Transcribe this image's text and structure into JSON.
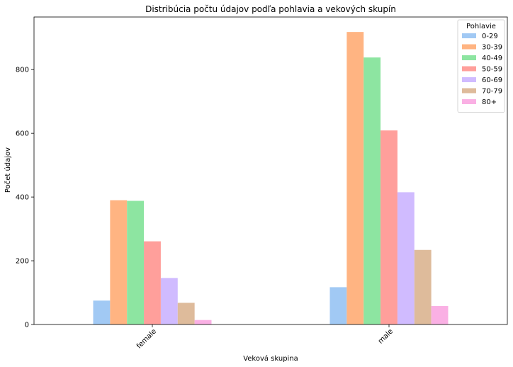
{
  "chart_data": {
    "type": "bar",
    "title": "Distribúcia počtu údajov podľa pohlavia a vekových skupín",
    "xlabel": "Veková skupina",
    "ylabel": "Počet údajov",
    "categories": [
      "female",
      "male"
    ],
    "ylim": [
      0,
      965
    ],
    "yticks": [
      0,
      200,
      400,
      600,
      800
    ],
    "legend_title": "Pohlavie",
    "legend_position": "top-right",
    "series": [
      {
        "name": "0-29",
        "color": "#a1c9f4",
        "values": [
          75,
          117
        ]
      },
      {
        "name": "30-39",
        "color": "#ffb482",
        "values": [
          390,
          918
        ]
      },
      {
        "name": "40-49",
        "color": "#8de5a1",
        "values": [
          388,
          838
        ]
      },
      {
        "name": "50-59",
        "color": "#ff9f9b",
        "values": [
          261,
          609
        ]
      },
      {
        "name": "60-69",
        "color": "#d0bbff",
        "values": [
          146,
          415
        ]
      },
      {
        "name": "70-79",
        "color": "#debb9b",
        "values": [
          68,
          234
        ]
      },
      {
        "name": "80+",
        "color": "#fab0e4",
        "values": [
          14,
          58
        ]
      }
    ]
  }
}
